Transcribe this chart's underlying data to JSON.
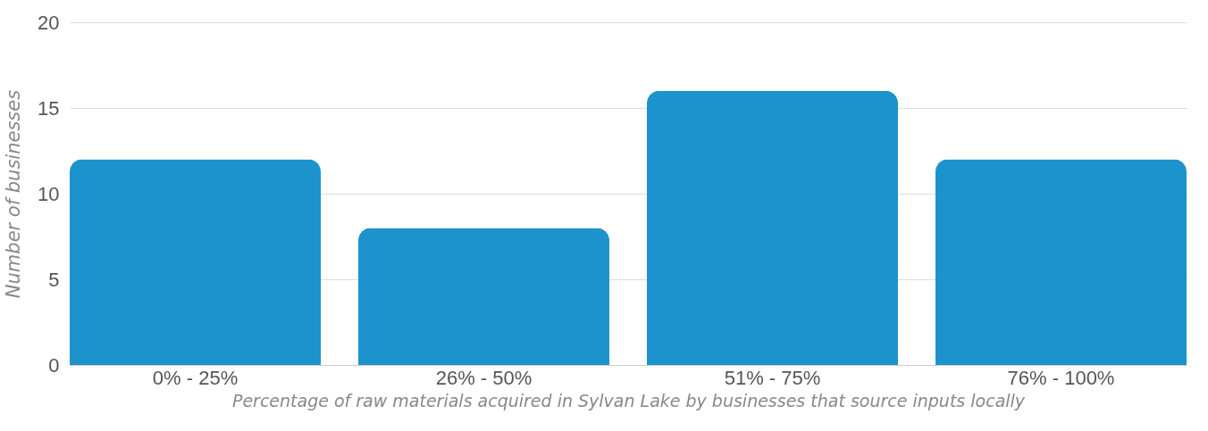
{
  "chart_data": {
    "type": "bar",
    "xlabel": "Percentage of raw materials acquired in Sylvan Lake by businesses that source inputs locally",
    "ylabel": "Number of businesses",
    "categories": [
      "0% - 25%",
      "26% - 50%",
      "51% - 75%",
      "76% - 100%"
    ],
    "values": [
      12,
      8,
      16,
      12
    ],
    "color": "#1c93cd",
    "ylim": [
      0,
      20
    ],
    "yticks": [
      0,
      5,
      10,
      15,
      20
    ],
    "grid": "y"
  }
}
